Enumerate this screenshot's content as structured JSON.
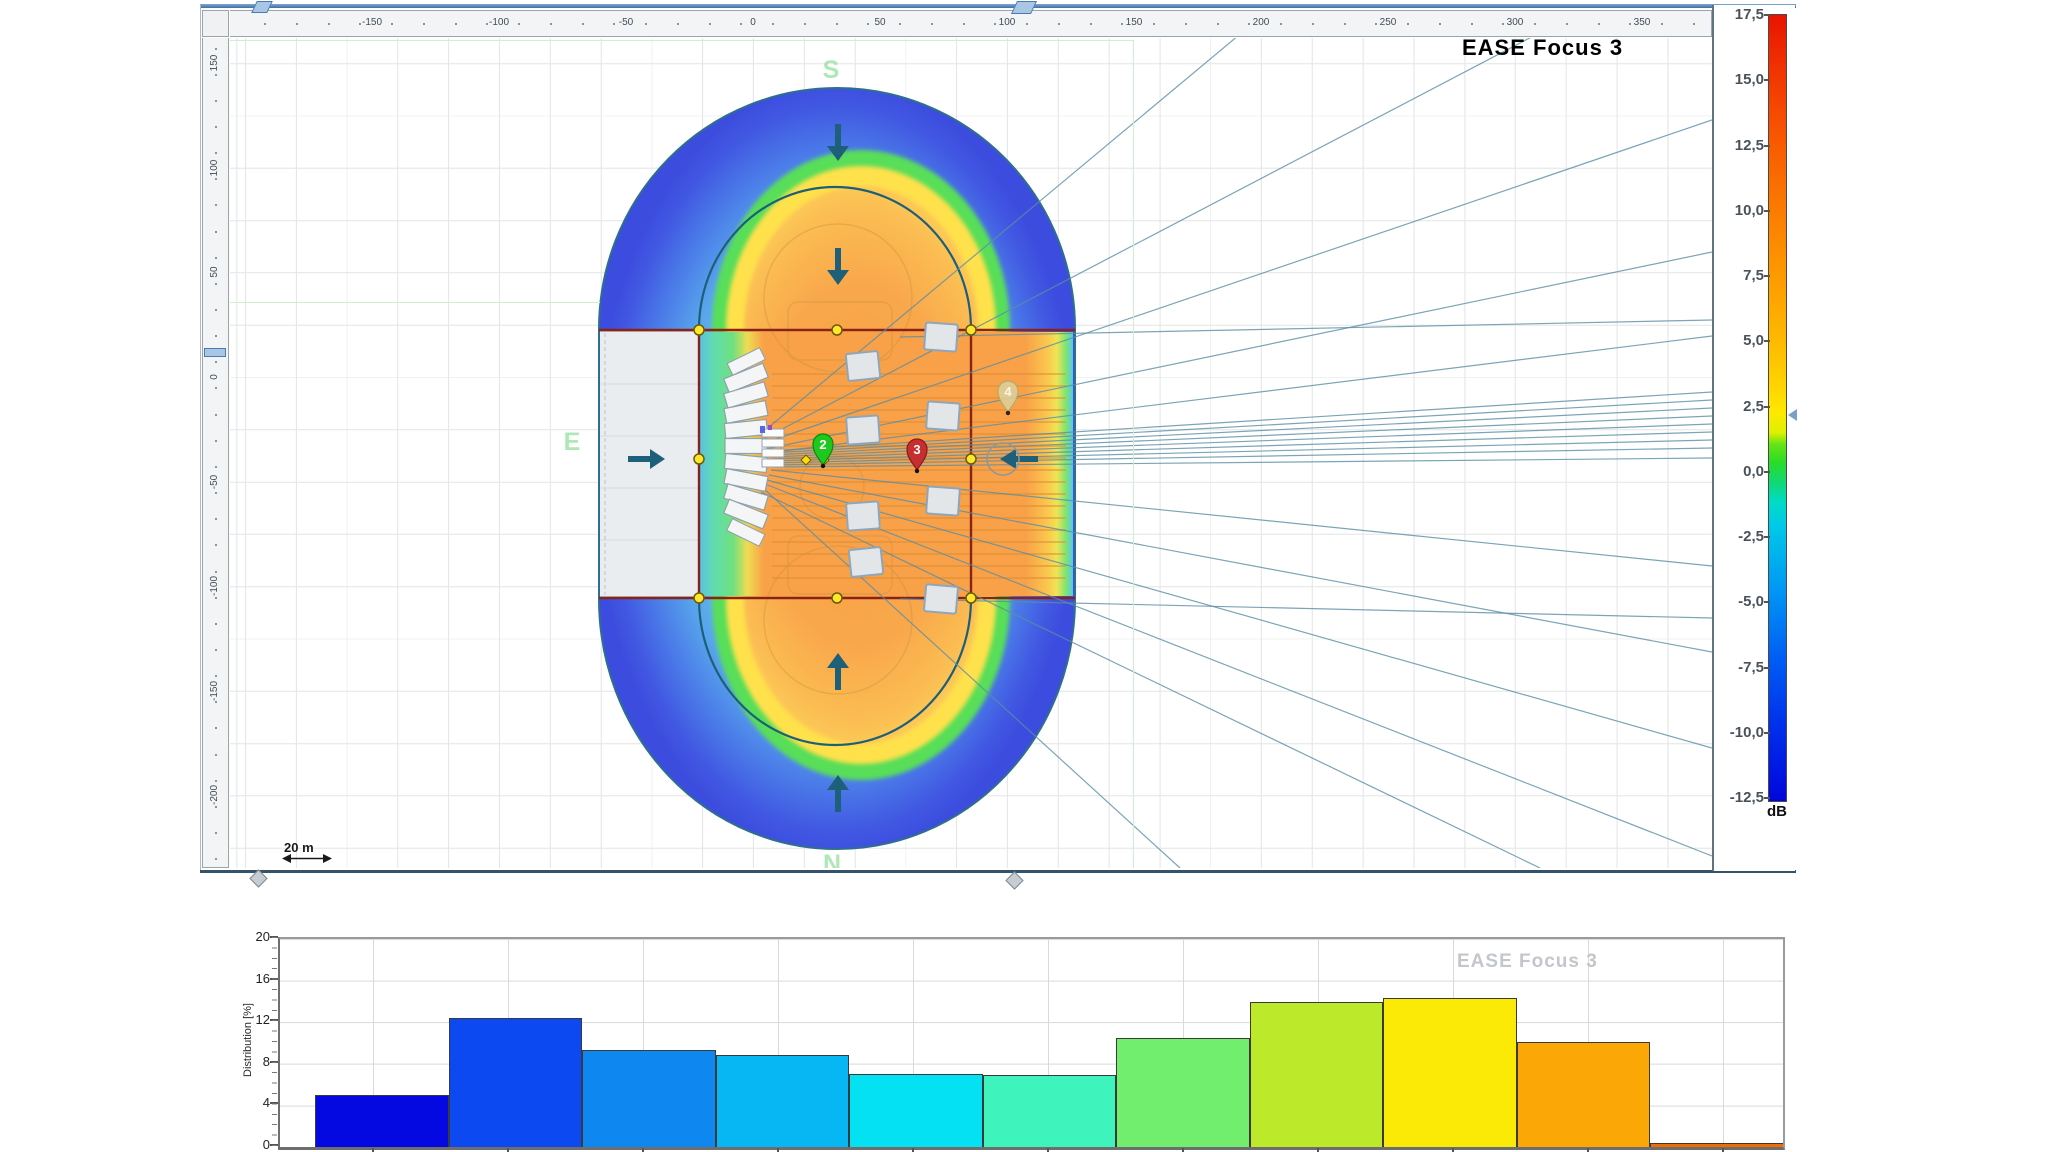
{
  "watermark": "EASE Focus 3",
  "map": {
    "ruler_top_labels": [
      "-150",
      "-100",
      "-50",
      "0",
      "50",
      "100",
      "150",
      "200",
      "250",
      "300",
      "350"
    ],
    "ruler_left_labels": [
      "150",
      "100",
      "50",
      "0",
      "-50",
      "-100",
      "-150",
      "-200"
    ],
    "scale_indicator": "20 m",
    "compass": {
      "top": "S",
      "left": "E",
      "bottom": "N"
    },
    "sources": [
      {
        "label": "2",
        "color": "#1FC81F"
      },
      {
        "label": "3",
        "color": "#C52F2F"
      },
      {
        "label": "4",
        "color": "#DCD09A"
      }
    ],
    "colors": {
      "spl_hot": "#F8A148",
      "spl_warm": "#FFE14C",
      "spl_mid": "#58DE58",
      "spl_cool": "#55C8EE",
      "spl_cold": "#3C4CDE",
      "audience_outline": "#8B2218",
      "venue_outline": "#2E6E8E",
      "stage_fill": "#EAEDEF",
      "handle_yellow": "#FFE62E",
      "aim_line": "#5B8EA4"
    }
  },
  "colorbar": {
    "tick_labels": [
      "17,5",
      "15,0",
      "12,5",
      "10,0",
      "7,5",
      "5,0",
      "2,5",
      "0,0",
      "-2,5",
      "-5,0",
      "-7,5",
      "-10,0",
      "-12,5"
    ],
    "unit": "dB",
    "gradient_stops": [
      [
        0,
        "#E81400"
      ],
      [
        8.1,
        "#F23800"
      ],
      [
        16.3,
        "#F85A00"
      ],
      [
        24.4,
        "#FB7A00"
      ],
      [
        32.6,
        "#FD9800"
      ],
      [
        40.7,
        "#FEB600"
      ],
      [
        47.2,
        "#FFD400"
      ],
      [
        50.5,
        "#FFE800"
      ],
      [
        53.1,
        "#DFF000"
      ],
      [
        54.6,
        "#66E414"
      ],
      [
        57,
        "#28DC28"
      ],
      [
        59.6,
        "#10D878"
      ],
      [
        62,
        "#00DCC8"
      ],
      [
        65.1,
        "#00C8E8"
      ],
      [
        73.3,
        "#0096F4"
      ],
      [
        81.4,
        "#0060F4"
      ],
      [
        89.6,
        "#0034EC"
      ],
      [
        97.7,
        "#0010E0"
      ],
      [
        100,
        "#0008D8"
      ]
    ]
  },
  "chart_data": {
    "type": "bar",
    "title": "",
    "xlabel": "",
    "ylabel": "Distribution [%]",
    "ylim": [
      0,
      20
    ],
    "yticks": [
      0,
      4,
      8,
      12,
      16,
      20
    ],
    "grid": true,
    "values": [
      5.0,
      12.4,
      9.3,
      8.8,
      7.0,
      6.9,
      10.5,
      13.9,
      14.3,
      10.1,
      0.4
    ],
    "colors": [
      "#0309E0",
      "#0D49F0",
      "#0E87F1",
      "#06B7F3",
      "#03E1F2",
      "#3EF3BC",
      "#72EE6E",
      "#BCEA2B",
      "#FBEA05",
      "#FBA806",
      "#F26C00"
    ],
    "note": "x tick labels cut off at bottom edge of screenshot; bar colors follow the dB colorbar",
    "watermark": "EASE Focus 3"
  }
}
